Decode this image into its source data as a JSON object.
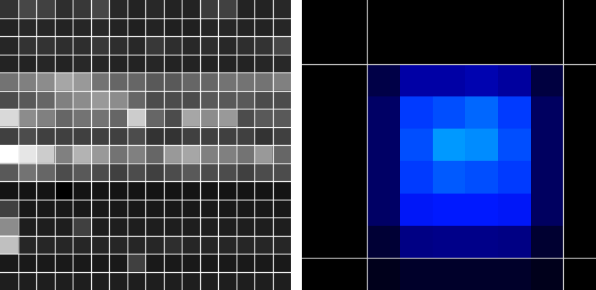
{
  "chart_data": [
    {
      "type": "heatmap",
      "color": "gray",
      "tick_labels": false,
      "cells": [
        [
          20,
          28,
          26,
          18,
          22,
          28,
          16,
          14,
          16,
          14,
          14,
          24,
          26,
          14,
          14,
          16
        ],
        [
          14,
          16,
          15,
          14,
          15,
          16,
          14,
          13,
          14,
          13,
          13,
          15,
          15,
          14,
          14,
          15
        ],
        [
          15,
          20,
          20,
          18,
          18,
          22,
          18,
          16,
          22,
          18,
          16,
          18,
          16,
          18,
          20,
          28
        ],
        [
          14,
          14,
          15,
          14,
          16,
          15,
          14,
          14,
          15,
          14,
          14,
          14,
          14,
          14,
          15,
          16
        ],
        [
          45,
          50,
          55,
          65,
          60,
          45,
          40,
          40,
          35,
          35,
          40,
          40,
          45,
          45,
          45,
          50
        ],
        [
          30,
          35,
          40,
          50,
          55,
          60,
          55,
          40,
          30,
          30,
          30,
          35,
          35,
          35,
          30,
          30
        ],
        [
          85,
          55,
          50,
          40,
          45,
          45,
          40,
          80,
          40,
          30,
          65,
          55,
          60,
          30,
          35,
          35
        ],
        [
          25,
          30,
          25,
          25,
          25,
          25,
          25,
          30,
          20,
          20,
          25,
          25,
          25,
          25,
          20,
          25
        ],
        [
          100,
          90,
          80,
          50,
          70,
          60,
          45,
          50,
          40,
          60,
          65,
          50,
          50,
          45,
          60,
          40
        ],
        [
          35,
          45,
          40,
          30,
          35,
          30,
          25,
          30,
          25,
          30,
          35,
          30,
          30,
          25,
          30,
          30
        ],
        [
          8,
          8,
          8,
          0,
          8,
          8,
          8,
          8,
          8,
          8,
          8,
          8,
          8,
          8,
          8,
          8
        ],
        [
          25,
          10,
          10,
          10,
          10,
          10,
          10,
          10,
          10,
          10,
          10,
          10,
          10,
          10,
          10,
          10
        ],
        [
          55,
          12,
          12,
          12,
          25,
          12,
          12,
          12,
          12,
          12,
          12,
          12,
          12,
          12,
          12,
          12
        ],
        [
          75,
          15,
          15,
          15,
          15,
          15,
          15,
          15,
          15,
          18,
          15,
          15,
          15,
          15,
          15,
          15
        ],
        [
          10,
          10,
          10,
          10,
          10,
          10,
          10,
          25,
          10,
          10,
          10,
          10,
          10,
          10,
          10,
          10
        ],
        [
          12,
          12,
          12,
          12,
          12,
          12,
          12,
          12,
          12,
          12,
          12,
          12,
          12,
          12,
          12,
          12
        ]
      ]
    },
    {
      "type": "heatmap",
      "color": "blue",
      "tick_labels": false,
      "cells": [
        [
          0,
          0,
          0,
          0,
          0,
          0,
          0,
          0,
          0
        ],
        [
          0,
          0,
          0,
          0,
          0,
          0,
          0,
          0,
          0
        ],
        [
          0,
          0,
          20,
          55,
          55,
          58,
          52,
          18,
          0
        ],
        [
          0,
          0,
          30,
          85,
          88,
          92,
          85,
          28,
          0
        ],
        [
          0,
          0,
          30,
          88,
          100,
          98,
          88,
          28,
          0
        ],
        [
          0,
          0,
          30,
          85,
          90,
          88,
          85,
          28,
          0
        ],
        [
          0,
          0,
          30,
          78,
          80,
          80,
          78,
          28,
          0
        ],
        [
          0,
          0,
          15,
          42,
          44,
          44,
          42,
          14,
          0
        ],
        [
          0,
          0,
          8,
          12,
          12,
          12,
          12,
          8,
          0
        ]
      ]
    }
  ]
}
